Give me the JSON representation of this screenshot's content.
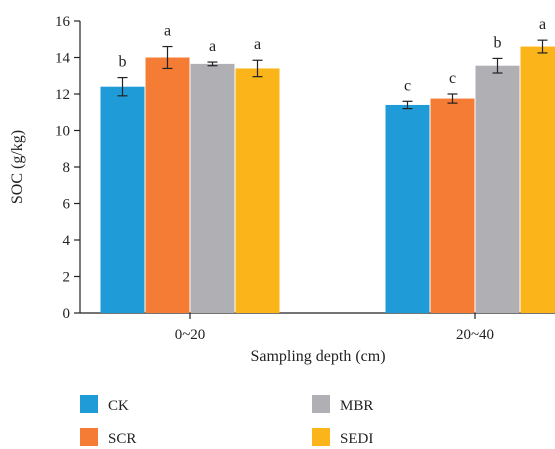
{
  "chart_data": {
    "type": "bar",
    "title": "",
    "xlabel": "Sampling depth (cm)",
    "ylabel": "SOC (g/kg)",
    "ylim": [
      0,
      16
    ],
    "yticks": [
      0,
      2,
      4,
      6,
      8,
      10,
      12,
      14,
      16
    ],
    "categories": [
      "0~20",
      "20~40"
    ],
    "grid": false,
    "legend_position": "bottom",
    "series": [
      {
        "name": "CK",
        "color": "#1f9bd7",
        "values": [
          12.4,
          11.4
        ],
        "errors": [
          0.5,
          0.2
        ],
        "labels": [
          "b",
          "c"
        ]
      },
      {
        "name": "SCR",
        "color": "#f47c34",
        "values": [
          14.0,
          11.75
        ],
        "errors": [
          0.6,
          0.25
        ],
        "labels": [
          "a",
          "c"
        ]
      },
      {
        "name": "MBR",
        "color": "#b0b0b4",
        "values": [
          13.65,
          13.55
        ],
        "errors": [
          0.1,
          0.4
        ],
        "labels": [
          "a",
          "b"
        ]
      },
      {
        "name": "SEDI",
        "color": "#fbb41a",
        "values": [
          13.4,
          14.6
        ],
        "errors": [
          0.45,
          0.35
        ],
        "labels": [
          "a",
          "a"
        ]
      }
    ]
  }
}
